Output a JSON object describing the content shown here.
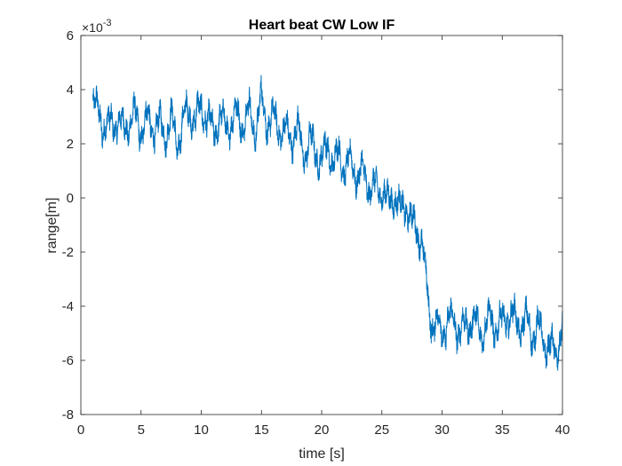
{
  "chart_data": {
    "type": "line",
    "title": "Heart beat CW Low IF",
    "xlabel": "time [s]",
    "ylabel": "range[m]",
    "y_exponent_label": "×10",
    "y_exponent_power": "-3",
    "xlim": [
      0,
      40
    ],
    "ylim": [
      -8,
      6
    ],
    "y_scale_factor": 0.001,
    "x_ticks": [
      0,
      5,
      10,
      15,
      20,
      25,
      30,
      35,
      40
    ],
    "x_tick_labels": [
      "0",
      "5",
      "10",
      "15",
      "20",
      "25",
      "30",
      "35",
      "40"
    ],
    "y_ticks": [
      -8,
      -6,
      -4,
      -2,
      0,
      2,
      4,
      6
    ],
    "y_tick_labels": [
      "-8",
      "-6",
      "-4",
      "-2",
      "0",
      "2",
      "4",
      "6"
    ],
    "grid": false,
    "box": true,
    "series": [
      {
        "color": "#0072BD",
        "x": [
          1.0,
          1.3,
          1.8,
          2.3,
          3.0,
          3.5,
          4.0,
          4.5,
          5.0,
          5.5,
          6.0,
          6.5,
          7.0,
          7.5,
          8.0,
          8.5,
          9.0,
          9.5,
          10.0,
          10.5,
          11.0,
          11.5,
          12.0,
          12.5,
          13.0,
          13.5,
          14.0,
          14.5,
          15.0,
          15.5,
          16.0,
          16.5,
          17.0,
          17.5,
          18.0,
          18.5,
          19.0,
          19.5,
          20.0,
          20.5,
          21.0,
          21.5,
          22.0,
          22.5,
          23.0,
          23.5,
          24.0,
          24.5,
          25.0,
          25.5,
          26.0,
          26.5,
          27.0,
          27.5,
          28.0,
          28.3,
          28.6,
          28.9,
          29.2,
          29.5,
          30.0,
          30.5,
          31.0,
          31.5,
          32.0,
          32.5,
          33.0,
          33.5,
          34.0,
          34.5,
          35.0,
          35.5,
          36.0,
          36.5,
          37.0,
          37.5,
          38.0,
          38.5,
          39.0,
          39.5,
          40.0
        ],
        "y": [
          3.6,
          3.2,
          2.8,
          2.6,
          2.9,
          2.5,
          2.8,
          3.0,
          2.5,
          2.9,
          2.6,
          2.7,
          2.4,
          2.9,
          2.0,
          2.8,
          3.3,
          2.8,
          3.4,
          2.9,
          2.4,
          3.0,
          2.6,
          2.8,
          3.1,
          2.7,
          3.2,
          2.5,
          3.6,
          2.8,
          2.9,
          2.6,
          2.4,
          2.2,
          2.6,
          1.6,
          2.1,
          1.7,
          1.4,
          1.9,
          1.3,
          1.6,
          1.1,
          1.3,
          0.8,
          0.9,
          0.4,
          0.3,
          0.4,
          -0.3,
          0.2,
          -0.5,
          -0.2,
          -1.0,
          -1.2,
          -1.5,
          -2.8,
          -4.0,
          -4.6,
          -4.7,
          -4.9,
          -4.6,
          -4.5,
          -5.0,
          -4.7,
          -4.5,
          -4.8,
          -4.9,
          -4.4,
          -4.8,
          -4.6,
          -4.3,
          -4.5,
          -4.7,
          -4.6,
          -5.0,
          -4.8,
          -5.3,
          -5.6,
          -5.7,
          -4.7
        ]
      }
    ]
  }
}
